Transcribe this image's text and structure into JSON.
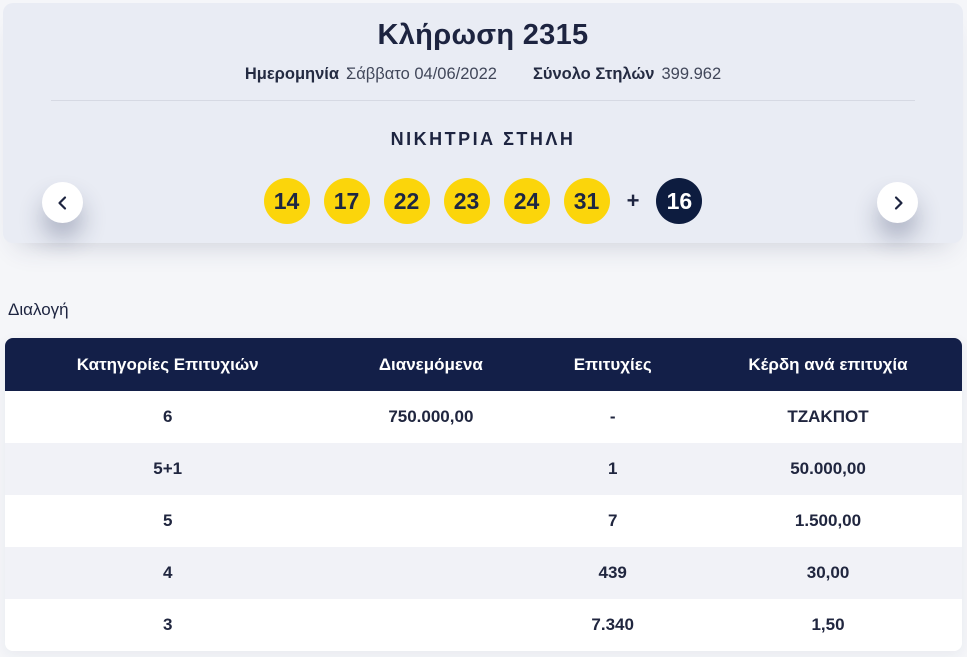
{
  "header": {
    "title": "Κλήρωση 2315",
    "date_label": "Ημερομηνία",
    "date_value": "Σάββατο 04/06/2022",
    "columns_label": "Σύνολο Στηλών",
    "columns_value": "399.962",
    "winning_title": "ΝΙΚΗΤΡΙΑ ΣΤΗΛΗ",
    "numbers": [
      14,
      17,
      22,
      23,
      24,
      31
    ],
    "plus": "+",
    "bonus": 16
  },
  "section": {
    "title": "Διαλογή"
  },
  "table": {
    "headers": [
      "Κατηγορίες Επιτυχιών",
      "Διανεμόμενα",
      "Επιτυχίες",
      "Κέρδη ανά επιτυχία"
    ],
    "rows": [
      [
        "6",
        "750.000,00",
        "-",
        "ΤΖΑΚΠΟΤ"
      ],
      [
        "5+1",
        "",
        "1",
        "50.000,00"
      ],
      [
        "5",
        "",
        "7",
        "1.500,00"
      ],
      [
        "4",
        "",
        "439",
        "30,00"
      ],
      [
        "3",
        "",
        "7.340",
        "1,50"
      ]
    ]
  },
  "colors": {
    "ball_yellow": "#fbd50b",
    "ball_navy": "#0d1c3f",
    "table_header_navy": "#131f48",
    "card_background": "#e9ecf4",
    "page_background": "#f5f6f9",
    "stripe_row": "#f1f2f7"
  }
}
